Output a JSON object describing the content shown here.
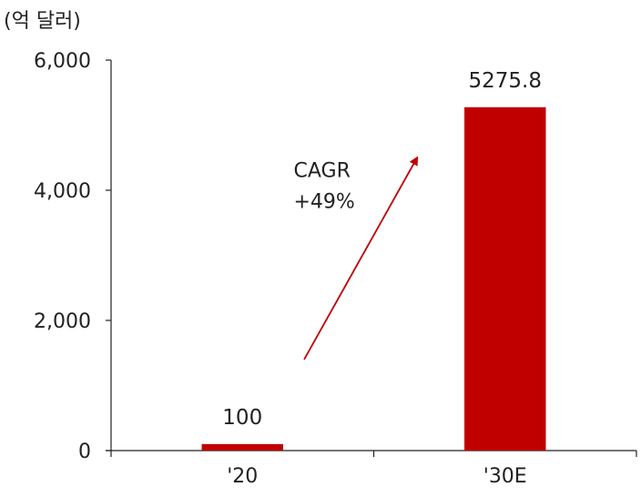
{
  "chart_data": {
    "type": "bar",
    "unit_label": "(억 달러)",
    "categories": [
      "'20",
      "'30E"
    ],
    "values": [
      100,
      5275.8
    ],
    "data_labels": [
      "100",
      "5275.8"
    ],
    "ylim": [
      0,
      6000
    ],
    "yticks": [
      0,
      2000,
      4000,
      6000
    ],
    "ytick_labels": [
      "0",
      "2,000",
      "4,000",
      "6,000"
    ],
    "grid": false,
    "legend": "none",
    "annotation": {
      "lines": [
        "CAGR",
        "+49%"
      ],
      "arrow": "rising"
    },
    "colors": {
      "bar": "#c00000",
      "arrow": "#c00000",
      "axis": "#222222"
    }
  }
}
